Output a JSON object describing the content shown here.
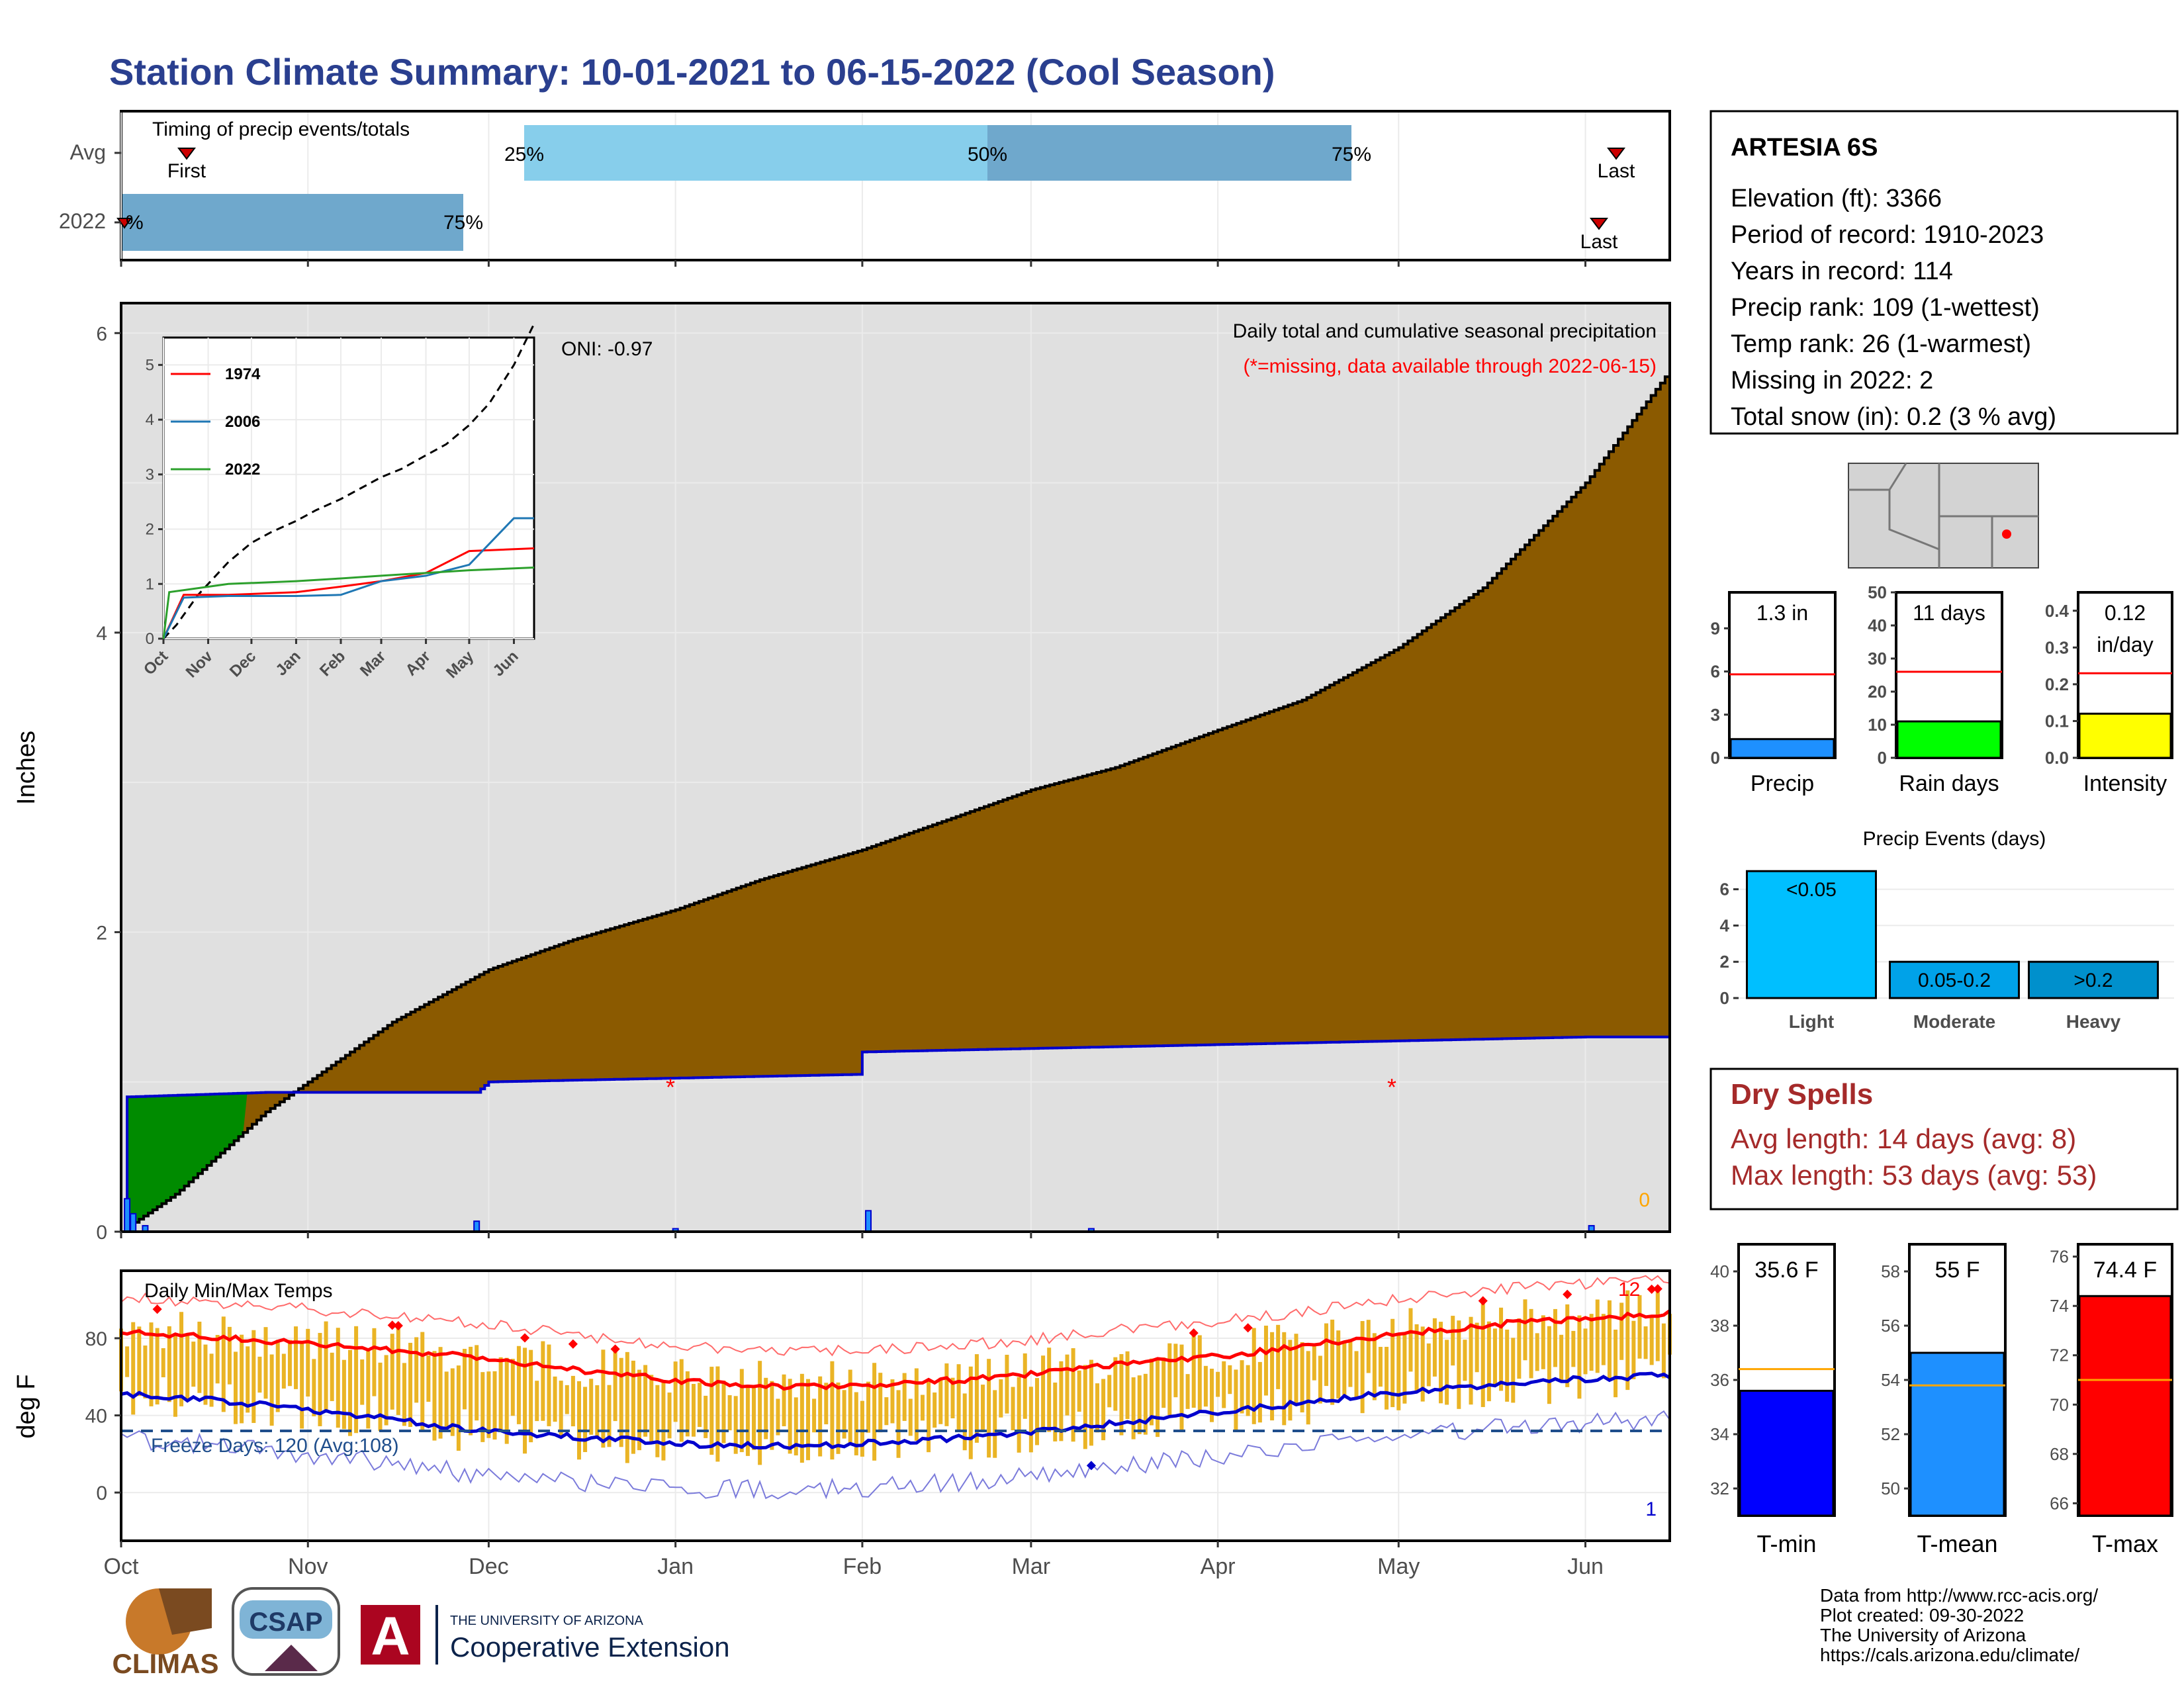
{
  "title": "Station Climate Summary: 10-01-2021 to 06-15-2022 (Cool Season)",
  "timing": {
    "label": "Timing of precip events/totals",
    "rows": [
      "Avg",
      "2022"
    ],
    "avg": {
      "first_label": "First",
      "last_label": "Last",
      "p25": "25%",
      "p50": "50%",
      "p75": "75%"
    },
    "y2022": {
      "first_label": "First",
      "last_label": "Last",
      "p0": "%",
      "p75": "75%"
    }
  },
  "station": {
    "name": "ARTESIA 6S",
    "lines": [
      "Elevation (ft): 3366",
      "Period of record: 1910-2023",
      "Years in record: 114",
      "Precip rank: 109 (1-wettest)",
      "Temp rank: 26 (1-warmest)",
      "Missing in 2022: 2",
      "Total snow (in): 0.2 (3 % avg)"
    ]
  },
  "main": {
    "ylabel": "Inches",
    "oni": "ONI: -0.97",
    "subtitle": "Daily total and cumulative seasonal precipitation",
    "missing_note": "(*=missing, data available through 2022-06-15)",
    "zero_label": "0",
    "colors": {
      "avg_fill": "#8b5a00",
      "obs_fill": "#008b00",
      "bg_fill": "#e0e0e0",
      "obs_line": "#0000cd"
    }
  },
  "temps": {
    "label": "Daily Min/Max Temps",
    "ylabel": "deg F",
    "freeze_label": "Freeze Days: 120 (Avg:108)",
    "count_high": "12",
    "count_low": "1"
  },
  "months": [
    "Oct",
    "Nov",
    "Dec",
    "Jan",
    "Feb",
    "Mar",
    "Apr",
    "May",
    "Jun"
  ],
  "inset_months": [
    "Oct",
    "Nov",
    "Dec",
    "Jan",
    "Feb",
    "Mar",
    "Apr",
    "May",
    "Jun"
  ],
  "precip_bars": {
    "precip": {
      "label": "1.3 in",
      "name": "Precip",
      "value": 1.3,
      "avg": 5.8,
      "ymax": 11.5,
      "ticks": [
        "0",
        "3",
        "6",
        "9"
      ],
      "color": "#1e90ff"
    },
    "rain_days": {
      "label": "11 days",
      "name": "Rain days",
      "value": 11,
      "avg": 26,
      "ymax": 50,
      "ticks": [
        "0",
        "10",
        "20",
        "30",
        "40",
        "50"
      ],
      "color": "#00ff00"
    },
    "intensity": {
      "label1": "0.12",
      "label2": "in/day",
      "name": "Intensity",
      "value": 0.12,
      "avg": 0.23,
      "ymax": 0.45,
      "ticks": [
        "0.0",
        "0.1",
        "0.2",
        "0.3",
        "0.4"
      ],
      "color": "#ffff00"
    }
  },
  "events": {
    "title": "Precip Events (days)",
    "ticks": [
      "0",
      "2",
      "4",
      "6"
    ],
    "bars": [
      {
        "cat": "Light",
        "label": "<0.05",
        "value": 7,
        "color": "#00bfff"
      },
      {
        "cat": "Moderate",
        "label": "0.05-0.2",
        "value": 2,
        "color": "#00a2e8"
      },
      {
        "cat": "Heavy",
        "label": ">0.2",
        "value": 2,
        "color": "#0090cc"
      }
    ]
  },
  "dry": {
    "title": "Dry Spells",
    "avg": "Avg length: 14 days (avg: 8)",
    "max": "Max length: 53 days (avg: 53)"
  },
  "temp_bars": {
    "tmin": {
      "label": "35.6 F",
      "name": "T-min",
      "value": 35.6,
      "avg": 36.4,
      "min": 31,
      "max": 41,
      "ticks": [
        "32",
        "34",
        "36",
        "38",
        "40"
      ],
      "color": "#0000ff"
    },
    "tmean": {
      "label": "55 F",
      "name": "T-mean",
      "value": 55,
      "avg": 53.8,
      "min": 49,
      "max": 59,
      "ticks": [
        "50",
        "52",
        "54",
        "56",
        "58"
      ],
      "color": "#1e90ff"
    },
    "tmax": {
      "label": "74.4 F",
      "name": "T-max",
      "value": 74.4,
      "avg": 71,
      "min": 65.5,
      "max": 76.5,
      "ticks": [
        "66",
        "68",
        "70",
        "72",
        "74",
        "76"
      ],
      "color": "#ff0000"
    }
  },
  "credits": [
    "Data from http://www.rcc-acis.org/",
    "Plot created: 09-30-2022",
    "The University of Arizona",
    "https://cals.arizona.edu/climate/"
  ],
  "logos": {
    "climas": "CLIMAS",
    "csap": "CSAP",
    "ua1": "THE UNIVERSITY OF ARIZONA",
    "ua2": "Cooperative Extension"
  },
  "chart_data": {
    "type": "area",
    "title": "Daily total and cumulative seasonal precipitation",
    "ylabel": "Inches",
    "ylim": [
      0,
      6.2
    ],
    "x_range": [
      "2021-10-01",
      "2022-06-15"
    ],
    "series": [
      {
        "name": "Avg cumulative",
        "x": [
          "2021-10-01",
          "2021-10-10",
          "2021-10-25",
          "2021-11-15",
          "2021-12-01",
          "2021-12-15",
          "2022-01-01",
          "2022-01-15",
          "2022-02-01",
          "2022-02-15",
          "2022-03-01",
          "2022-03-15",
          "2022-04-01",
          "2022-04-15",
          "2022-05-01",
          "2022-05-15",
          "2022-06-01",
          "2022-06-15"
        ],
        "values": [
          0,
          0.25,
          0.8,
          1.4,
          1.75,
          1.95,
          2.15,
          2.35,
          2.55,
          2.75,
          2.95,
          3.1,
          3.35,
          3.55,
          3.9,
          4.3,
          5.0,
          5.75
        ]
      },
      {
        "name": "2022 cumulative",
        "x": [
          "2021-10-01",
          "2021-10-02",
          "2021-10-25",
          "2021-11-29",
          "2021-12-01",
          "2022-01-31",
          "2022-02-01",
          "2022-06-01",
          "2022-06-15"
        ],
        "values": [
          0,
          0.9,
          0.93,
          0.93,
          1.0,
          1.05,
          1.2,
          1.3,
          1.3
        ]
      },
      {
        "name": "1974",
        "x": [
          "2021-10-01",
          "2021-10-15",
          "2021-11-15",
          "2022-01-01",
          "2022-02-01",
          "2022-03-01",
          "2022-04-01",
          "2022-05-01",
          "2022-06-15"
        ],
        "values": [
          0,
          0.8,
          0.8,
          0.85,
          0.95,
          1.05,
          1.2,
          1.6,
          1.65
        ]
      },
      {
        "name": "2006",
        "x": [
          "2021-10-01",
          "2021-10-15",
          "2021-11-15",
          "2022-01-01",
          "2022-02-01",
          "2022-03-01",
          "2022-04-01",
          "2022-05-01",
          "2022-06-01",
          "2022-06-15"
        ],
        "values": [
          0,
          0.75,
          0.78,
          0.78,
          0.8,
          1.05,
          1.15,
          1.35,
          2.2,
          2.2
        ]
      },
      {
        "name": "2022",
        "x": [
          "2021-10-01",
          "2021-10-05",
          "2021-11-15",
          "2022-01-01",
          "2022-02-01",
          "2022-03-01",
          "2022-04-01",
          "2022-05-01",
          "2022-06-15"
        ],
        "values": [
          0,
          0.85,
          1.0,
          1.05,
          1.1,
          1.15,
          1.2,
          1.25,
          1.3
        ]
      }
    ],
    "temps": {
      "ylim": [
        -25,
        115
      ],
      "tmax_avg": [
        83,
        80,
        75,
        70,
        62,
        57,
        55,
        56,
        60,
        66,
        72,
        80,
        88,
        93
      ],
      "tmin_avg": [
        51,
        47,
        40,
        32,
        28,
        25,
        24,
        26,
        30,
        36,
        43,
        50,
        57,
        61
      ],
      "x": [
        "2021-10-01",
        "2021-10-20",
        "2021-11-10",
        "2021-11-30",
        "2021-12-20",
        "2022-01-05",
        "2022-01-20",
        "2022-02-05",
        "2022-02-25",
        "2022-03-15",
        "2022-04-05",
        "2022-04-25",
        "2022-05-20",
        "2022-06-15"
      ]
    }
  }
}
